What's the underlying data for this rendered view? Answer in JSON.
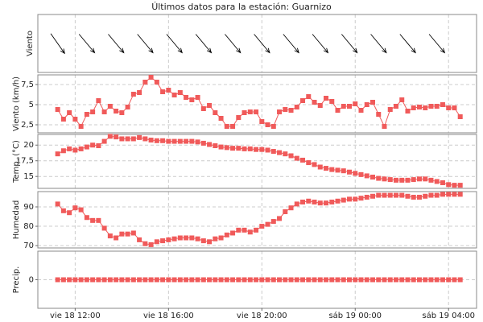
{
  "chart_data": [
    {
      "type": "arrows",
      "title": "Últimos datos para la estación: Guarnizo",
      "ylabel": "Viento",
      "x": [
        11.25,
        12.5,
        13.75,
        15,
        16.25,
        17.5,
        18.75,
        20,
        21.25,
        22.5,
        23.75,
        25,
        26.25,
        27.5
      ],
      "directions": [
        325,
        320,
        320,
        320,
        320,
        320,
        320,
        320,
        320,
        320,
        320,
        320,
        320,
        320
      ],
      "color": "#000000"
    },
    {
      "type": "line",
      "ylabel": "Viento (km/h)",
      "color": "#f05a5a",
      "grid": true,
      "ylim": [
        1.5,
        8.7
      ],
      "yticks": [
        {
          "value": 2.5,
          "label": "2,5"
        },
        5,
        {
          "value": 7.5,
          "label": "7,5"
        }
      ],
      "x": [
        11.25,
        11.5,
        11.75,
        12,
        12.25,
        12.5,
        12.75,
        13,
        13.25,
        13.5,
        13.75,
        14,
        14.25,
        14.5,
        14.75,
        15,
        15.25,
        15.5,
        15.75,
        16,
        16.25,
        16.5,
        16.75,
        17,
        17.25,
        17.5,
        17.75,
        18,
        18.25,
        18.5,
        18.75,
        19,
        19.25,
        19.5,
        19.75,
        20,
        20.25,
        20.5,
        20.75,
        21,
        21.25,
        21.5,
        21.75,
        22,
        22.25,
        22.5,
        22.75,
        23,
        23.25,
        23.5,
        23.75,
        24,
        24.25,
        24.5,
        24.75,
        25,
        25.25,
        25.5,
        25.75,
        26,
        26.25,
        26.5,
        26.75,
        27,
        27.25,
        27.5,
        27.75,
        28,
        28.25,
        28.5
      ],
      "values": [
        4.4,
        3.2,
        4.0,
        3.2,
        2.3,
        3.8,
        4.1,
        5.5,
        4.1,
        4.8,
        4.2,
        4.0,
        4.7,
        6.3,
        6.5,
        7.8,
        8.4,
        7.8,
        6.6,
        6.8,
        6.2,
        6.5,
        5.9,
        5.6,
        5.9,
        4.5,
        4.9,
        4.0,
        3.3,
        2.3,
        2.3,
        3.4,
        4.0,
        4.1,
        4.1,
        2.9,
        2.5,
        2.3,
        4.1,
        4.4,
        4.3,
        4.7,
        5.5,
        6.0,
        5.3,
        4.9,
        5.8,
        5.4,
        4.3,
        4.8,
        4.8,
        5.1,
        4.3,
        5.0,
        5.3,
        3.8,
        2.3,
        4.4,
        4.8,
        5.6,
        4.2,
        4.6,
        4.7,
        4.6,
        4.8,
        4.8,
        5.0,
        4.6,
        4.6,
        3.5
      ]
    },
    {
      "type": "line",
      "ylabel": "Temp. (°C)",
      "color": "#f05a5a",
      "grid": true,
      "ylim": [
        13.1,
        21.7
      ],
      "yticks": [
        15,
        {
          "value": 17.5,
          "label": "17,5"
        },
        20
      ],
      "x": [
        11.25,
        11.5,
        11.75,
        12,
        12.25,
        12.5,
        12.75,
        13,
        13.25,
        13.5,
        13.75,
        14,
        14.25,
        14.5,
        14.75,
        15,
        15.25,
        15.5,
        15.75,
        16,
        16.25,
        16.5,
        16.75,
        17,
        17.25,
        17.5,
        17.75,
        18,
        18.25,
        18.5,
        18.75,
        19,
        19.25,
        19.5,
        19.75,
        20,
        20.25,
        20.5,
        20.75,
        21,
        21.25,
        21.5,
        21.75,
        22,
        22.25,
        22.5,
        22.75,
        23,
        23.25,
        23.5,
        23.75,
        24,
        24.25,
        24.5,
        24.75,
        25,
        25.25,
        25.5,
        25.75,
        26,
        26.25,
        26.5,
        26.75,
        27,
        27.25,
        27.5,
        27.75,
        28,
        28.25,
        28.5
      ],
      "values": [
        18.6,
        19.1,
        19.4,
        19.2,
        19.4,
        19.7,
        20.0,
        19.9,
        20.6,
        21.4,
        21.3,
        21.0,
        21.0,
        21.0,
        21.2,
        21.0,
        20.8,
        20.7,
        20.7,
        20.6,
        20.6,
        20.6,
        20.6,
        20.6,
        20.5,
        20.3,
        20.1,
        19.9,
        19.7,
        19.6,
        19.5,
        19.5,
        19.4,
        19.4,
        19.3,
        19.3,
        19.2,
        19.0,
        18.8,
        18.6,
        18.3,
        17.9,
        17.6,
        17.2,
        16.9,
        16.5,
        16.3,
        16.1,
        16.0,
        15.9,
        15.7,
        15.5,
        15.3,
        15.1,
        14.9,
        14.7,
        14.6,
        14.5,
        14.4,
        14.4,
        14.4,
        14.5,
        14.6,
        14.6,
        14.4,
        14.2,
        14.0,
        13.7,
        13.6,
        13.6
      ]
    },
    {
      "type": "line",
      "ylabel": "Humedad",
      "color": "#f05a5a",
      "grid": true,
      "ylim": [
        68.8,
        97.9
      ],
      "yticks": [
        70,
        80,
        90
      ],
      "x": [
        11.25,
        11.5,
        11.75,
        12,
        12.25,
        12.5,
        12.75,
        13,
        13.25,
        13.5,
        13.75,
        14,
        14.25,
        14.5,
        14.75,
        15,
        15.25,
        15.5,
        15.75,
        16,
        16.25,
        16.5,
        16.75,
        17,
        17.25,
        17.5,
        17.75,
        18,
        18.25,
        18.5,
        18.75,
        19,
        19.25,
        19.5,
        19.75,
        20,
        20.25,
        20.5,
        20.75,
        21,
        21.25,
        21.5,
        21.75,
        22,
        22.25,
        22.5,
        22.75,
        23,
        23.25,
        23.5,
        23.75,
        24,
        24.25,
        24.5,
        24.75,
        25,
        25.25,
        25.5,
        25.75,
        26,
        26.25,
        26.5,
        26.75,
        27,
        27.25,
        27.5,
        27.75,
        28,
        28.25,
        28.5
      ],
      "values": [
        91.5,
        88,
        87,
        89.5,
        88.5,
        84.5,
        83,
        83,
        79,
        75,
        74,
        76,
        76,
        76.5,
        73,
        71,
        70.5,
        72,
        72.5,
        73,
        73.5,
        74,
        74,
        74,
        73.5,
        72.5,
        72,
        73.5,
        74,
        75.5,
        76.5,
        78,
        78,
        77,
        78,
        80,
        81,
        82.5,
        84,
        87.5,
        89.5,
        91.5,
        92.5,
        93,
        92.5,
        92,
        92,
        92.5,
        93,
        93.5,
        94,
        94,
        94.5,
        95,
        95.5,
        96,
        96,
        96,
        96,
        96,
        95.5,
        95,
        95,
        95.5,
        96,
        96,
        96.5,
        96.5,
        96.5,
        96.5
      ]
    },
    {
      "type": "line",
      "ylabel": "Precip.",
      "color": "#f05a5a",
      "grid": true,
      "ylim": [
        -1,
        1
      ],
      "yticks": [
        0
      ],
      "xlim": [
        10.4,
        29.2
      ],
      "xticks": [
        {
          "value": 12,
          "label": "vie 18 12:00"
        },
        {
          "value": 16,
          "label": "vie 18 16:00"
        },
        {
          "value": 20,
          "label": "vie 18 20:00"
        },
        {
          "value": 24,
          "label": "sáb 19 00:00"
        },
        {
          "value": 28,
          "label": "sáb 19 04:00"
        }
      ],
      "x": [
        11.25,
        11.5,
        11.75,
        12,
        12.25,
        12.5,
        12.75,
        13,
        13.25,
        13.5,
        13.75,
        14,
        14.25,
        14.5,
        14.75,
        15,
        15.25,
        15.5,
        15.75,
        16,
        16.25,
        16.5,
        16.75,
        17,
        17.25,
        17.5,
        17.75,
        18,
        18.25,
        18.5,
        18.75,
        19,
        19.25,
        19.5,
        19.75,
        20,
        20.25,
        20.5,
        20.75,
        21,
        21.25,
        21.5,
        21.75,
        22,
        22.25,
        22.5,
        22.75,
        23,
        23.25,
        23.5,
        23.75,
        24,
        24.25,
        24.5,
        24.75,
        25,
        25.25,
        25.5,
        25.75,
        26,
        26.25,
        26.5,
        26.75,
        27,
        27.25,
        27.5,
        27.75,
        28,
        28.25,
        28.5
      ],
      "values": [
        0,
        0,
        0,
        0,
        0,
        0,
        0,
        0,
        0,
        0,
        0,
        0,
        0,
        0,
        0,
        0,
        0,
        0,
        0,
        0,
        0,
        0,
        0,
        0,
        0,
        0,
        0,
        0,
        0,
        0,
        0,
        0,
        0,
        0,
        0,
        0,
        0,
        0,
        0,
        0,
        0,
        0,
        0,
        0,
        0,
        0,
        0,
        0,
        0,
        0,
        0,
        0,
        0,
        0,
        0,
        0,
        0,
        0,
        0,
        0,
        0,
        0,
        0,
        0,
        0,
        0,
        0,
        0,
        0,
        0
      ]
    }
  ]
}
